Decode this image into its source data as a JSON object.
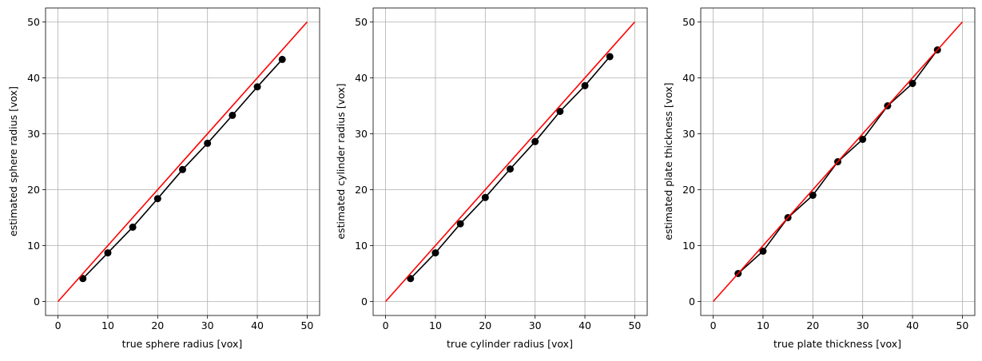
{
  "chart_data": [
    {
      "type": "line",
      "xlabel": "true sphere radius [vox]",
      "ylabel": "estimated sphere radius [vox]",
      "xlim": [
        -2.5,
        52.5
      ],
      "ylim": [
        -2.5,
        52.5
      ],
      "xticks": [
        0,
        10,
        20,
        30,
        40,
        50
      ],
      "yticks": [
        0,
        10,
        20,
        30,
        40,
        50
      ],
      "grid": true,
      "series": [
        {
          "color": "#000000",
          "marker": "circle",
          "x": [
            5,
            10,
            15,
            20,
            25,
            30,
            35,
            40,
            45
          ],
          "y": [
            4.1,
            8.7,
            13.3,
            18.4,
            23.6,
            28.3,
            33.3,
            38.4,
            43.3
          ]
        },
        {
          "color": "#ff0000",
          "marker": "none",
          "x": [
            0,
            50
          ],
          "y": [
            0,
            50
          ]
        }
      ]
    },
    {
      "type": "line",
      "xlabel": "true cylinder radius [vox]",
      "ylabel": "estimated cylinder radius [vox]",
      "xlim": [
        -2.5,
        52.5
      ],
      "ylim": [
        -2.5,
        52.5
      ],
      "xticks": [
        0,
        10,
        20,
        30,
        40,
        50
      ],
      "yticks": [
        0,
        10,
        20,
        30,
        40,
        50
      ],
      "grid": true,
      "series": [
        {
          "color": "#000000",
          "marker": "circle",
          "x": [
            5,
            10,
            15,
            20,
            25,
            30,
            35,
            40,
            45
          ],
          "y": [
            4.1,
            8.7,
            13.9,
            18.6,
            23.7,
            28.6,
            34.0,
            38.6,
            43.8
          ]
        },
        {
          "color": "#ff0000",
          "marker": "none",
          "x": [
            0,
            50
          ],
          "y": [
            0,
            50
          ]
        }
      ]
    },
    {
      "type": "line",
      "xlabel": "true plate thickness [vox]",
      "ylabel": "estimated plate thickness [vox]",
      "xlim": [
        -2.5,
        52.5
      ],
      "ylim": [
        -2.5,
        52.5
      ],
      "xticks": [
        0,
        10,
        20,
        30,
        40,
        50
      ],
      "yticks": [
        0,
        10,
        20,
        30,
        40,
        50
      ],
      "grid": true,
      "series": [
        {
          "color": "#000000",
          "marker": "circle",
          "x": [
            5,
            10,
            15,
            20,
            25,
            30,
            35,
            40,
            45
          ],
          "y": [
            5,
            9,
            15,
            19,
            25,
            29,
            35,
            39,
            45
          ]
        },
        {
          "color": "#ff0000",
          "marker": "none",
          "x": [
            0,
            50
          ],
          "y": [
            0,
            50
          ]
        }
      ]
    }
  ]
}
